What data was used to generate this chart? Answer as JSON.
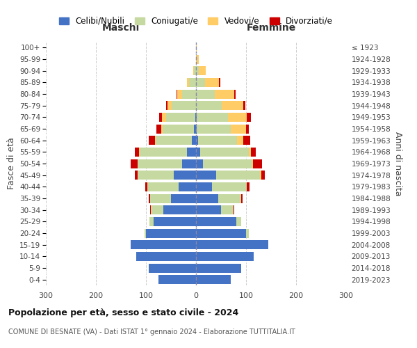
{
  "age_groups": [
    "0-4",
    "5-9",
    "10-14",
    "15-19",
    "20-24",
    "25-29",
    "30-34",
    "35-39",
    "40-44",
    "45-49",
    "50-54",
    "55-59",
    "60-64",
    "65-69",
    "70-74",
    "75-79",
    "80-84",
    "85-89",
    "90-94",
    "95-99",
    "100+"
  ],
  "birth_years": [
    "2019-2023",
    "2014-2018",
    "2009-2013",
    "2004-2008",
    "1999-2003",
    "1994-1998",
    "1989-1993",
    "1984-1988",
    "1979-1983",
    "1974-1978",
    "1969-1973",
    "1964-1968",
    "1959-1963",
    "1954-1958",
    "1949-1953",
    "1944-1948",
    "1939-1943",
    "1934-1938",
    "1929-1933",
    "1924-1928",
    "≤ 1923"
  ],
  "males": {
    "celibi": [
      75,
      95,
      120,
      130,
      100,
      85,
      65,
      50,
      35,
      45,
      28,
      18,
      8,
      4,
      2,
      0,
      0,
      0,
      0,
      0,
      0
    ],
    "coniugati": [
      0,
      0,
      0,
      0,
      3,
      8,
      25,
      42,
      62,
      72,
      88,
      95,
      72,
      62,
      58,
      48,
      28,
      14,
      4,
      0,
      0
    ],
    "vedovi": [
      0,
      0,
      0,
      0,
      0,
      0,
      0,
      0,
      0,
      0,
      1,
      1,
      2,
      4,
      8,
      9,
      9,
      4,
      2,
      0,
      0
    ],
    "divorziati": [
      0,
      0,
      0,
      0,
      0,
      0,
      1,
      3,
      5,
      5,
      14,
      8,
      12,
      9,
      5,
      3,
      2,
      0,
      0,
      0,
      0
    ]
  },
  "females": {
    "nubili": [
      70,
      90,
      115,
      145,
      100,
      80,
      50,
      45,
      32,
      40,
      14,
      8,
      4,
      2,
      2,
      0,
      0,
      0,
      0,
      0,
      0
    ],
    "coniugate": [
      0,
      0,
      0,
      0,
      5,
      10,
      25,
      45,
      70,
      88,
      98,
      98,
      78,
      68,
      62,
      52,
      38,
      18,
      6,
      1,
      0
    ],
    "vedove": [
      0,
      0,
      0,
      0,
      0,
      0,
      0,
      0,
      0,
      2,
      2,
      4,
      12,
      30,
      38,
      42,
      38,
      28,
      14,
      5,
      1
    ],
    "divorziate": [
      0,
      0,
      0,
      0,
      0,
      0,
      2,
      3,
      5,
      8,
      18,
      10,
      14,
      5,
      8,
      4,
      3,
      2,
      0,
      0,
      0
    ]
  },
  "colors": {
    "celibi": "#4472C4",
    "coniugati": "#C5D9A0",
    "vedovi": "#FFCC66",
    "divorziati": "#CC0000"
  },
  "xlim": 300,
  "title": "Popolazione per età, sesso e stato civile - 2024",
  "subtitle": "COMUNE DI BESNATE (VA) - Dati ISTAT 1° gennaio 2024 - Elaborazione TUTTITALIA.IT",
  "ylabel_left": "Fasce di età",
  "ylabel_right": "Anni di nascita",
  "legend_labels": [
    "Celibi/Nubili",
    "Coniugati/e",
    "Vedovi/e",
    "Divorziati/e"
  ],
  "maschi_label": "Maschi",
  "femmine_label": "Femmine",
  "background_color": "#ffffff"
}
